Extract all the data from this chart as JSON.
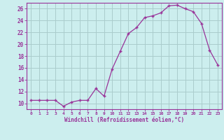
{
  "x": [
    0,
    1,
    2,
    3,
    4,
    5,
    6,
    7,
    8,
    9,
    10,
    11,
    12,
    13,
    14,
    15,
    16,
    17,
    18,
    19,
    20,
    21,
    22,
    23
  ],
  "y": [
    10.5,
    10.5,
    10.5,
    10.5,
    9.5,
    10.2,
    10.5,
    10.5,
    12.5,
    11.2,
    15.8,
    18.8,
    21.8,
    22.8,
    24.5,
    24.8,
    25.3,
    26.5,
    26.6,
    26.0,
    25.5,
    23.5,
    19.0,
    16.5
  ],
  "line_color": "#993399",
  "marker": "+",
  "marker_color": "#993399",
  "bg_color": "#cceeee",
  "grid_color": "#aacccc",
  "tick_color": "#993399",
  "axis_color": "#993399",
  "xlabel": "Windchill (Refroidissement éolien,°C)",
  "ylabel_ticks": [
    10,
    12,
    14,
    16,
    18,
    20,
    22,
    24,
    26
  ],
  "xlim": [
    -0.5,
    23.5
  ],
  "ylim": [
    9.0,
    27.0
  ],
  "figwidth": 3.2,
  "figheight": 2.0,
  "dpi": 100
}
